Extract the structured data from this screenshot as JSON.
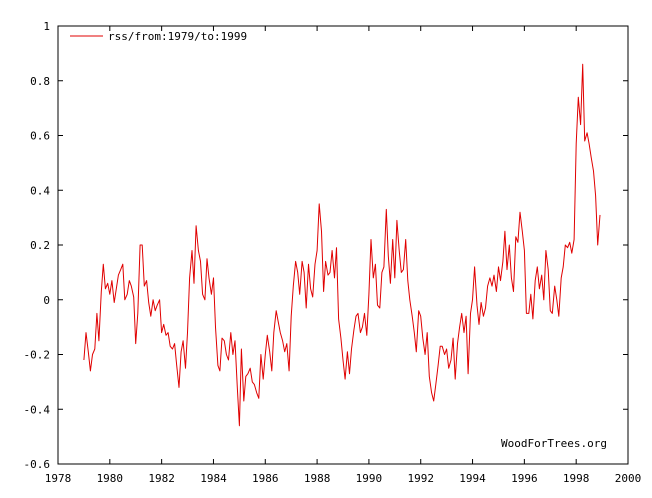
{
  "chart_data": {
    "type": "line",
    "title": "",
    "xlabel": "",
    "ylabel": "",
    "xlim": [
      1978,
      2000
    ],
    "ylim": [
      -0.6,
      1
    ],
    "grid": false,
    "legend_position": "top-left",
    "x_ticks": [
      "1978",
      "1980",
      "1982",
      "1984",
      "1986",
      "1988",
      "1990",
      "1992",
      "1994",
      "1996",
      "1998",
      "2000"
    ],
    "y_ticks": [
      "-0.6",
      "-0.4",
      "-0.2",
      "0",
      "0.2",
      "0.4",
      "0.6",
      "0.8",
      "1"
    ],
    "credit": "WoodForTrees.org",
    "series": [
      {
        "name": "rss/from:1979/to:1999",
        "color": "#e00000",
        "x": [
          1979.0,
          1979.08,
          1979.17,
          1979.25,
          1979.33,
          1979.42,
          1979.5,
          1979.58,
          1979.67,
          1979.75,
          1979.83,
          1979.92,
          1980.0,
          1980.08,
          1980.17,
          1980.25,
          1980.33,
          1980.42,
          1980.5,
          1980.58,
          1980.67,
          1980.75,
          1980.83,
          1980.92,
          1981.0,
          1981.08,
          1981.17,
          1981.25,
          1981.33,
          1981.42,
          1981.5,
          1981.58,
          1981.67,
          1981.75,
          1981.83,
          1981.92,
          1982.0,
          1982.08,
          1982.17,
          1982.25,
          1982.33,
          1982.42,
          1982.5,
          1982.58,
          1982.67,
          1982.75,
          1982.83,
          1982.92,
          1983.0,
          1983.08,
          1983.17,
          1983.25,
          1983.33,
          1983.42,
          1983.5,
          1983.58,
          1983.67,
          1983.75,
          1983.83,
          1983.92,
          1984.0,
          1984.08,
          1984.17,
          1984.25,
          1984.33,
          1984.42,
          1984.5,
          1984.58,
          1984.67,
          1984.75,
          1984.83,
          1984.92,
          1985.0,
          1985.08,
          1985.17,
          1985.25,
          1985.33,
          1985.42,
          1985.5,
          1985.58,
          1985.67,
          1985.75,
          1985.83,
          1985.92,
          1986.0,
          1986.08,
          1986.17,
          1986.25,
          1986.33,
          1986.42,
          1986.5,
          1986.58,
          1986.67,
          1986.75,
          1986.83,
          1986.92,
          1987.0,
          1987.08,
          1987.17,
          1987.25,
          1987.33,
          1987.42,
          1987.5,
          1987.58,
          1987.67,
          1987.75,
          1987.83,
          1987.92,
          1988.0,
          1988.08,
          1988.17,
          1988.25,
          1988.33,
          1988.42,
          1988.5,
          1988.58,
          1988.67,
          1988.75,
          1988.83,
          1988.92,
          1989.0,
          1989.08,
          1989.17,
          1989.25,
          1989.33,
          1989.42,
          1989.5,
          1989.58,
          1989.67,
          1989.75,
          1989.83,
          1989.92,
          1990.0,
          1990.08,
          1990.17,
          1990.25,
          1990.33,
          1990.42,
          1990.5,
          1990.58,
          1990.67,
          1990.75,
          1990.83,
          1990.92,
          1991.0,
          1991.08,
          1991.17,
          1991.25,
          1991.33,
          1991.42,
          1991.5,
          1991.58,
          1991.67,
          1991.75,
          1991.83,
          1991.92,
          1992.0,
          1992.08,
          1992.17,
          1992.25,
          1992.33,
          1992.42,
          1992.5,
          1992.58,
          1992.67,
          1992.75,
          1992.83,
          1992.92,
          1993.0,
          1993.08,
          1993.17,
          1993.25,
          1993.33,
          1993.42,
          1993.5,
          1993.58,
          1993.67,
          1993.75,
          1993.83,
          1993.92,
          1994.0,
          1994.08,
          1994.17,
          1994.25,
          1994.33,
          1994.42,
          1994.5,
          1994.58,
          1994.67,
          1994.75,
          1994.83,
          1994.92,
          1995.0,
          1995.08,
          1995.17,
          1995.25,
          1995.33,
          1995.42,
          1995.5,
          1995.58,
          1995.67,
          1995.75,
          1995.83,
          1995.92,
          1996.0,
          1996.08,
          1996.17,
          1996.25,
          1996.33,
          1996.42,
          1996.5,
          1996.58,
          1996.67,
          1996.75,
          1996.83,
          1996.92,
          1997.0,
          1997.08,
          1997.17,
          1997.25,
          1997.33,
          1997.42,
          1997.5,
          1997.58,
          1997.67,
          1997.75,
          1997.83,
          1997.92,
          1998.0,
          1998.08,
          1998.17,
          1998.25,
          1998.33,
          1998.42,
          1998.5,
          1998.58,
          1998.67,
          1998.75,
          1998.83,
          1998.92
        ],
        "y": [
          -0.22,
          -0.12,
          -0.19,
          -0.26,
          -0.2,
          -0.18,
          -0.05,
          -0.15,
          0.03,
          0.13,
          0.04,
          0.06,
          0.02,
          0.07,
          -0.01,
          0.04,
          0.09,
          0.11,
          0.13,
          0.0,
          0.02,
          0.07,
          0.05,
          0.01,
          -0.16,
          -0.05,
          0.2,
          0.2,
          0.05,
          0.07,
          -0.01,
          -0.06,
          0.0,
          -0.04,
          -0.02,
          0.0,
          -0.12,
          -0.09,
          -0.13,
          -0.12,
          -0.17,
          -0.18,
          -0.16,
          -0.24,
          -0.32,
          -0.19,
          -0.15,
          -0.25,
          -0.12,
          0.08,
          0.18,
          0.06,
          0.27,
          0.18,
          0.14,
          0.02,
          0.0,
          0.15,
          0.08,
          0.02,
          0.08,
          -0.1,
          -0.24,
          -0.26,
          -0.14,
          -0.15,
          -0.2,
          -0.22,
          -0.12,
          -0.2,
          -0.15,
          -0.32,
          -0.46,
          -0.18,
          -0.37,
          -0.28,
          -0.27,
          -0.25,
          -0.3,
          -0.31,
          -0.34,
          -0.36,
          -0.2,
          -0.29,
          -0.2,
          -0.13,
          -0.19,
          -0.26,
          -0.12,
          -0.04,
          -0.08,
          -0.12,
          -0.15,
          -0.19,
          -0.16,
          -0.26,
          -0.06,
          0.05,
          0.14,
          0.1,
          0.02,
          0.14,
          0.1,
          -0.03,
          0.13,
          0.04,
          0.01,
          0.13,
          0.18,
          0.35,
          0.25,
          0.03,
          0.14,
          0.09,
          0.1,
          0.18,
          0.08,
          0.19,
          -0.07,
          -0.14,
          -0.22,
          -0.29,
          -0.19,
          -0.27,
          -0.18,
          -0.11,
          -0.06,
          -0.05,
          -0.12,
          -0.1,
          -0.05,
          -0.13,
          0.02,
          0.22,
          0.08,
          0.13,
          -0.02,
          -0.03,
          0.1,
          0.12,
          0.33,
          0.16,
          0.06,
          0.22,
          0.08,
          0.29,
          0.18,
          0.1,
          0.11,
          0.22,
          0.07,
          0.0,
          -0.06,
          -0.12,
          -0.19,
          -0.04,
          -0.06,
          -0.14,
          -0.2,
          -0.12,
          -0.28,
          -0.34,
          -0.37,
          -0.31,
          -0.24,
          -0.17,
          -0.17,
          -0.2,
          -0.18,
          -0.25,
          -0.22,
          -0.14,
          -0.29,
          -0.16,
          -0.1,
          -0.05,
          -0.12,
          -0.06,
          -0.27,
          -0.05,
          0.0,
          0.12,
          -0.02,
          -0.09,
          -0.01,
          -0.06,
          -0.03,
          0.05,
          0.08,
          0.05,
          0.09,
          0.03,
          0.12,
          0.07,
          0.14,
          0.25,
          0.11,
          0.2,
          0.08,
          0.03,
          0.23,
          0.21,
          0.32,
          0.25,
          0.18,
          -0.05,
          -0.05,
          0.02,
          -0.07,
          0.07,
          0.12,
          0.04,
          0.09,
          0.0,
          0.18,
          0.11,
          -0.04,
          -0.05,
          0.05,
          0.0,
          -0.06,
          0.08,
          0.12,
          0.2,
          0.19,
          0.21,
          0.17,
          0.22,
          0.57,
          0.74,
          0.64,
          0.86,
          0.58,
          0.61,
          0.57,
          0.52,
          0.47,
          0.38,
          0.2,
          0.31
        ]
      }
    ]
  }
}
